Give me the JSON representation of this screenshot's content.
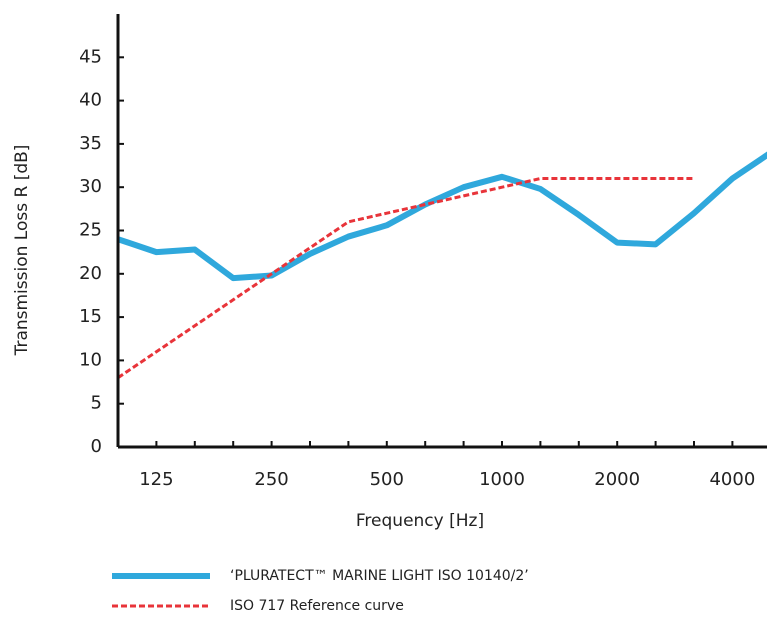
{
  "chart_data": {
    "type": "line",
    "y_label": "Transmission Loss R [dB]",
    "x_label": "Frequency [Hz]",
    "categories": [
      null,
      "125",
      null,
      null,
      "250",
      null,
      null,
      "500",
      null,
      null,
      "1000",
      null,
      null,
      "2000",
      null,
      null,
      "4000",
      null
    ],
    "series": [
      {
        "name": "‘PLURATECT™ MARINE LIGHT ISO 10140/2’",
        "color": "#2fa8dc",
        "style": "solid",
        "values": [
          24,
          22.5,
          22.8,
          19.5,
          19.8,
          22.3,
          24.3,
          25.6,
          28,
          30,
          31.2,
          29.8,
          26.8,
          23.6,
          23.4,
          27,
          31,
          34
        ]
      },
      {
        "name": "ISO 717 Reference curve",
        "color": "#e8343a",
        "style": "dashed",
        "values": [
          8,
          11,
          14,
          17,
          20,
          23,
          26,
          27,
          28,
          29,
          30,
          31,
          31,
          31,
          31,
          31,
          null,
          null
        ]
      }
    ],
    "ylim": [
      0,
      50
    ],
    "yticks": [
      0,
      5,
      10,
      15,
      20,
      25,
      30,
      35,
      40,
      45
    ]
  }
}
